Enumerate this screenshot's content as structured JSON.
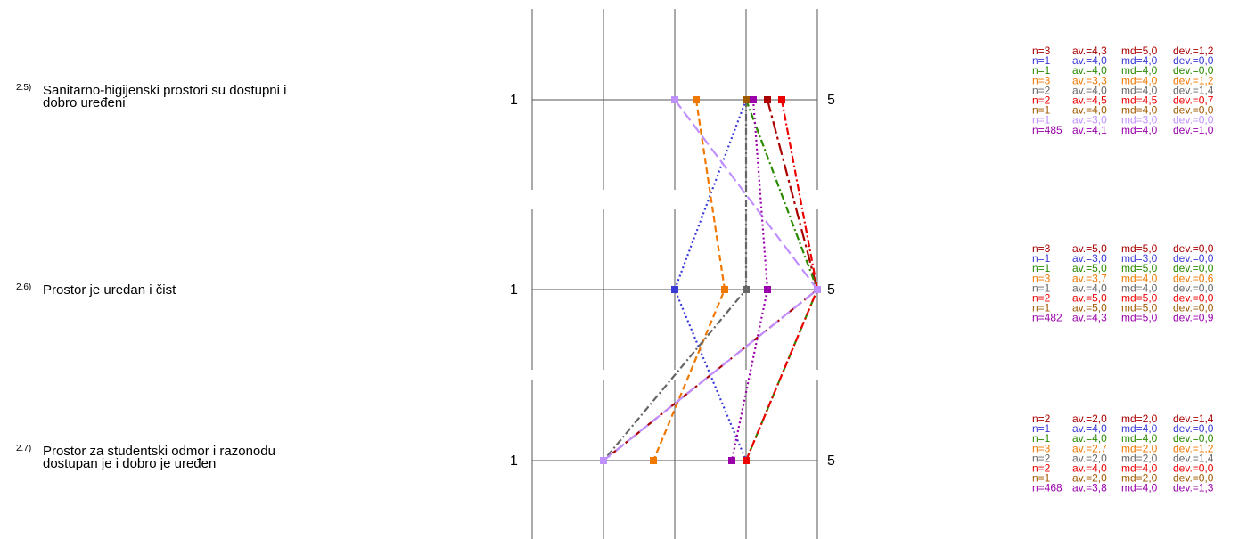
{
  "chart_data": {
    "type": "line",
    "scale": {
      "min": 1,
      "max": 5,
      "min_label": "1",
      "max_label": "5"
    },
    "items": [
      {
        "num": "2.5)",
        "lines": [
          "Sanitarno-higijenski prostori su  dostupni i",
          "dobro uređeni"
        ],
        "stats": [
          {
            "n": "n=3",
            "av": "av.=4,3",
            "md": "md=5,0",
            "dev": "dev.=1,2"
          },
          {
            "n": "n=1",
            "av": "av.=4,0",
            "md": "md=4,0",
            "dev": "dev.=0,0"
          },
          {
            "n": "n=1",
            "av": "av.=4,0",
            "md": "md=4,0",
            "dev": "dev.=0,0"
          },
          {
            "n": "n=3",
            "av": "av.=3,3",
            "md": "md=4,0",
            "dev": "dev.=1,2"
          },
          {
            "n": "n=2",
            "av": "av.=4,0",
            "md": "md=4,0",
            "dev": "dev.=1,4"
          },
          {
            "n": "n=2",
            "av": "av.=4,5",
            "md": "md=4,5",
            "dev": "dev.=0,7"
          },
          {
            "n": "n=1",
            "av": "av.=4,0",
            "md": "md=4,0",
            "dev": "dev.=0,0"
          },
          {
            "n": "n=1",
            "av": "av.=3,0",
            "md": "md=3,0",
            "dev": "dev.=0,0"
          },
          {
            "n": "n=485",
            "av": "av.=4,1",
            "md": "md=4,0",
            "dev": "dev.=1,0"
          }
        ]
      },
      {
        "num": "2.6)",
        "lines": [
          "Prostor je uredan i čist"
        ],
        "stats": [
          {
            "n": "n=3",
            "av": "av.=5,0",
            "md": "md=5,0",
            "dev": "dev.=0,0"
          },
          {
            "n": "n=1",
            "av": "av.=3,0",
            "md": "md=3,0",
            "dev": "dev.=0,0"
          },
          {
            "n": "n=1",
            "av": "av.=5,0",
            "md": "md=5,0",
            "dev": "dev.=0,0"
          },
          {
            "n": "n=3",
            "av": "av.=3,7",
            "md": "md=4,0",
            "dev": "dev.=0,6"
          },
          {
            "n": "n=1",
            "av": "av.=4,0",
            "md": "md=4,0",
            "dev": "dev.=0,0"
          },
          {
            "n": "n=2",
            "av": "av.=5,0",
            "md": "md=5,0",
            "dev": "dev.=0,0"
          },
          {
            "n": "n=1",
            "av": "av.=5,0",
            "md": "md=5,0",
            "dev": "dev.=0,0"
          },
          {
            "n": "n=482",
            "av": "av.=4,3",
            "md": "md=5,0",
            "dev": "dev.=0,9"
          }
        ]
      },
      {
        "num": "2.7)",
        "lines": [
          "Prostor za studentski odmor i razonodu",
          "dostupan je i dobro je uređen"
        ],
        "stats": [
          {
            "n": "n=2",
            "av": "av.=2,0",
            "md": "md=2,0",
            "dev": "dev.=1,4"
          },
          {
            "n": "n=1",
            "av": "av.=4,0",
            "md": "md=4,0",
            "dev": "dev.=0,0"
          },
          {
            "n": "n=1",
            "av": "av.=4,0",
            "md": "md=4,0",
            "dev": "dev.=0,0"
          },
          {
            "n": "n=3",
            "av": "av.=2,7",
            "md": "md=2,0",
            "dev": "dev.=1,2"
          },
          {
            "n": "n=2",
            "av": "av.=2,0",
            "md": "md=2,0",
            "dev": "dev.=1,4"
          },
          {
            "n": "n=2",
            "av": "av.=4,0",
            "md": "md=4,0",
            "dev": "dev.=0,0"
          },
          {
            "n": "n=1",
            "av": "av.=2,0",
            "md": "md=2,0",
            "dev": "dev.=0,0"
          },
          {
            "n": "n=468",
            "av": "av.=3,8",
            "md": "md=4,0",
            "dev": "dev.=1,3"
          }
        ]
      }
    ],
    "series": [
      {
        "color": "#aa0000",
        "dash": "14 4 3 4",
        "values": [
          4.3,
          5.0,
          2.0
        ]
      },
      {
        "color": "#3a3ad6",
        "dash": "2 3",
        "values": [
          4.0,
          3.0,
          4.0
        ]
      },
      {
        "color": "#2a8a00",
        "dash": "8 3 2 3",
        "values": [
          4.0,
          5.0,
          4.0
        ]
      },
      {
        "color": "#f07800",
        "dash": "7 4",
        "values": [
          3.3,
          3.7,
          2.7
        ]
      },
      {
        "color": "#666666",
        "dash": "8 3 2 3",
        "values": [
          4.0,
          4.0,
          2.0
        ]
      },
      {
        "color": "#ee0000",
        "dash": "8 3 2 3",
        "values": [
          4.5,
          5.0,
          4.0
        ]
      },
      {
        "color": "#a05a00",
        "dash": "3 2",
        "values": [
          4.0,
          null,
          null
        ]
      },
      {
        "color": "#c090ff",
        "dash": "12 5",
        "values": [
          3.0,
          5.0,
          2.0
        ]
      },
      {
        "color": "#9900aa",
        "dash": "2 3",
        "values": [
          4.1,
          4.3,
          3.8
        ]
      }
    ]
  }
}
